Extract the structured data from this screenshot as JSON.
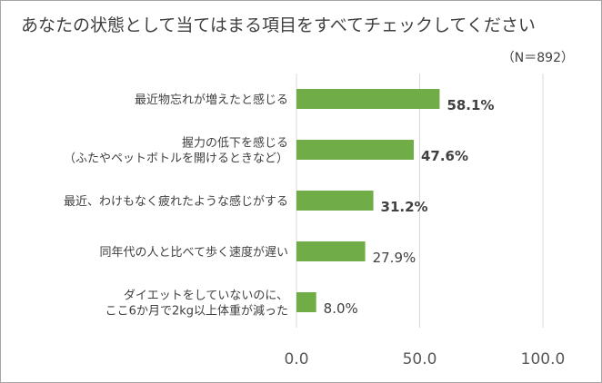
{
  "header": {
    "title": "あなたの状態として当てはまる項目をすべてチェックしてください",
    "note": "（N＝892）"
  },
  "chart_data": {
    "type": "bar",
    "orientation": "horizontal",
    "title": "あなたの状態として当てはまる項目をすべてチェックしてください",
    "note": "（N＝892）",
    "categories": [
      [
        "最近物忘れが増えたと感じる"
      ],
      [
        "握力の低下を感じる",
        "（ふたやペットボトルを開けるときなど）"
      ],
      [
        "最近、わけもなく疲れたような感じがする"
      ],
      [
        "同年代の人と比べて歩く速度が遅い"
      ],
      [
        "ダイエットをしていないのに、",
        "ここ6か月で2kg以上体重が減った"
      ]
    ],
    "values": [
      58.1,
      47.6,
      31.2,
      27.9,
      8.0
    ],
    "value_labels": [
      "58.1%",
      "47.6%",
      "31.2%",
      "27.9%",
      "8.0%"
    ],
    "value_label_bold": [
      true,
      true,
      true,
      false,
      false
    ],
    "xlim": [
      0,
      100
    ],
    "xticks": [
      0,
      50,
      100
    ],
    "xtick_labels": [
      "0.0",
      "50.0",
      "100.0"
    ],
    "bar_color": "#70ad47",
    "gridline_color": "#d9d9d9",
    "grid": true
  }
}
